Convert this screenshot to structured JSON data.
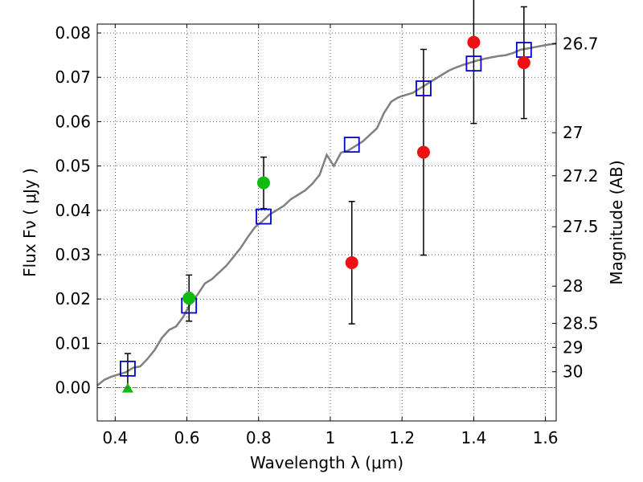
{
  "chart_data": {
    "type": "scatter",
    "xlabel": "Wavelength  λ (μm)",
    "ylabel": "Flux  Fν ( μJy )",
    "ylabel_right": "Magnitude (AB)",
    "xlim": [
      0.35,
      1.63
    ],
    "ylim": [
      -0.0075,
      0.082
    ],
    "grid": true,
    "x_ticks": [
      {
        "value": 0.4,
        "label": "0.4"
      },
      {
        "value": 0.6,
        "label": "0.6"
      },
      {
        "value": 0.8,
        "label": "0.8"
      },
      {
        "value": 1.0,
        "label": "1"
      },
      {
        "value": 1.2,
        "label": "1.2"
      },
      {
        "value": 1.4,
        "label": "1.4"
      },
      {
        "value": 1.6,
        "label": "1.6"
      }
    ],
    "y_ticks": [
      {
        "value": 0.0,
        "label": "0.00"
      },
      {
        "value": 0.01,
        "label": "0.01"
      },
      {
        "value": 0.02,
        "label": "0.02"
      },
      {
        "value": 0.03,
        "label": "0.03"
      },
      {
        "value": 0.04,
        "label": "0.04"
      },
      {
        "value": 0.05,
        "label": "0.05"
      },
      {
        "value": 0.06,
        "label": "0.06"
      },
      {
        "value": 0.07,
        "label": "0.07"
      },
      {
        "value": 0.08,
        "label": "0.08"
      }
    ],
    "mag_ticks": [
      {
        "label": "26.7",
        "flux": 0.0776
      },
      {
        "label": "27",
        "flux": 0.0575
      },
      {
        "label": "27.2",
        "flux": 0.0478
      },
      {
        "label": "27.5",
        "flux": 0.0363
      },
      {
        "label": "28",
        "flux": 0.0229
      },
      {
        "label": "28.5",
        "flux": 0.0145
      },
      {
        "label": "29",
        "flux": 0.0091
      },
      {
        "label": "30",
        "flux": 0.0036
      }
    ],
    "series": [
      {
        "kind": "model",
        "color": "#808080",
        "points": [
          [
            0.35,
            0.0005
          ],
          [
            0.37,
            0.0018
          ],
          [
            0.39,
            0.0025
          ],
          [
            0.41,
            0.003
          ],
          [
            0.43,
            0.0035
          ],
          [
            0.45,
            0.0045
          ],
          [
            0.47,
            0.0048
          ],
          [
            0.49,
            0.0065
          ],
          [
            0.51,
            0.0085
          ],
          [
            0.53,
            0.0112
          ],
          [
            0.55,
            0.013
          ],
          [
            0.57,
            0.0138
          ],
          [
            0.59,
            0.016
          ],
          [
            0.61,
            0.019
          ],
          [
            0.63,
            0.021
          ],
          [
            0.65,
            0.0235
          ],
          [
            0.67,
            0.0245
          ],
          [
            0.69,
            0.026
          ],
          [
            0.71,
            0.0275
          ],
          [
            0.73,
            0.0295
          ],
          [
            0.75,
            0.0315
          ],
          [
            0.77,
            0.034
          ],
          [
            0.79,
            0.0362
          ],
          [
            0.81,
            0.0375
          ],
          [
            0.83,
            0.039
          ],
          [
            0.85,
            0.04
          ],
          [
            0.87,
            0.041
          ],
          [
            0.89,
            0.0425
          ],
          [
            0.91,
            0.0435
          ],
          [
            0.93,
            0.0445
          ],
          [
            0.95,
            0.046
          ],
          [
            0.97,
            0.048
          ],
          [
            0.99,
            0.0525
          ],
          [
            1.01,
            0.05
          ],
          [
            1.03,
            0.053
          ],
          [
            1.05,
            0.0535
          ],
          [
            1.07,
            0.0545
          ],
          [
            1.09,
            0.0555
          ],
          [
            1.11,
            0.057
          ],
          [
            1.13,
            0.0585
          ],
          [
            1.15,
            0.062
          ],
          [
            1.17,
            0.0645
          ],
          [
            1.19,
            0.0655
          ],
          [
            1.21,
            0.066
          ],
          [
            1.23,
            0.0665
          ],
          [
            1.25,
            0.0675
          ],
          [
            1.27,
            0.0685
          ],
          [
            1.29,
            0.0695
          ],
          [
            1.31,
            0.0705
          ],
          [
            1.33,
            0.0715
          ],
          [
            1.35,
            0.0722
          ],
          [
            1.37,
            0.0728
          ],
          [
            1.39,
            0.0733
          ],
          [
            1.41,
            0.0738
          ],
          [
            1.43,
            0.0742
          ],
          [
            1.45,
            0.0745
          ],
          [
            1.47,
            0.0748
          ],
          [
            1.49,
            0.075
          ],
          [
            1.51,
            0.0755
          ],
          [
            1.53,
            0.0762
          ],
          [
            1.55,
            0.0765
          ],
          [
            1.57,
            0.0768
          ],
          [
            1.59,
            0.0771
          ],
          [
            1.61,
            0.0774
          ],
          [
            1.63,
            0.0776
          ]
        ]
      },
      {
        "kind": "model-photometry",
        "color": "#0000cc",
        "marker": "square",
        "points": [
          [
            0.435,
            0.0043
          ],
          [
            0.606,
            0.0185
          ],
          [
            0.814,
            0.0386
          ],
          [
            1.06,
            0.0548
          ],
          [
            1.26,
            0.0675
          ],
          [
            1.4,
            0.0731
          ],
          [
            1.54,
            0.0762
          ]
        ]
      },
      {
        "kind": "observed-green",
        "color": "#10bb10",
        "marker": "circle",
        "points": [
          [
            0.606,
            0.0202,
            0.0052
          ],
          [
            0.814,
            0.0462,
            0.0058
          ]
        ]
      },
      {
        "kind": "upper-limit-green",
        "color": "#10bb10",
        "marker": "triangle",
        "points": [
          [
            0.435,
            0.0
          ]
        ],
        "errorbar_top": 0.0077
      },
      {
        "kind": "observed-red",
        "color": "#ee1111",
        "marker": "circle",
        "points": [
          [
            1.06,
            0.0282,
            0.0138
          ],
          [
            1.26,
            0.0531,
            0.0232
          ],
          [
            1.4,
            0.0779,
            0.0183
          ],
          [
            1.54,
            0.0733,
            0.0126
          ]
        ]
      }
    ]
  }
}
